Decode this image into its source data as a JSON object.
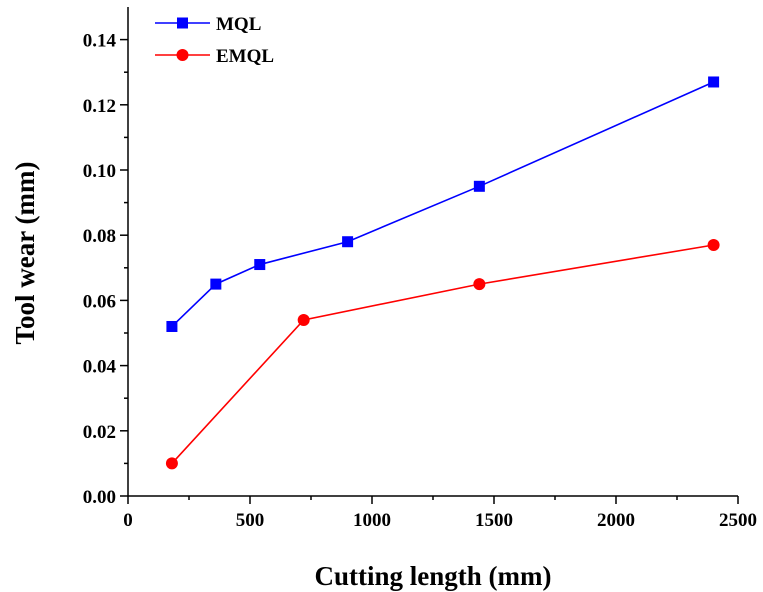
{
  "chart_data": {
    "type": "line",
    "title": "",
    "xlabel": "Cutting length (mm)",
    "ylabel": "Tool wear (mm)",
    "xlim": [
      0,
      2500
    ],
    "ylim": [
      0,
      0.15
    ],
    "x_ticks": [
      0,
      500,
      1000,
      1500,
      2000,
      2500
    ],
    "x_tick_labels": [
      "0",
      "500",
      "1000",
      "1500",
      "2000",
      "2500"
    ],
    "y_ticks": [
      0,
      0.02,
      0.04,
      0.06,
      0.08,
      0.1,
      0.12,
      0.14
    ],
    "y_tick_labels": [
      "0.00",
      "0.02",
      "0.04",
      "0.06",
      "0.08",
      "0.10",
      "0.12",
      "0.14"
    ],
    "grid": false,
    "legend_position": "top-left",
    "series": [
      {
        "name": "MQL",
        "color": "#0000ff",
        "marker": "square",
        "x": [
          180,
          360,
          540,
          900,
          1440,
          2400
        ],
        "y": [
          0.052,
          0.065,
          0.071,
          0.078,
          0.095,
          0.127
        ]
      },
      {
        "name": "EMQL",
        "color": "#ff0000",
        "marker": "circle",
        "x": [
          180,
          720,
          1440,
          2400
        ],
        "y": [
          0.01,
          0.054,
          0.065,
          0.077
        ]
      }
    ]
  }
}
